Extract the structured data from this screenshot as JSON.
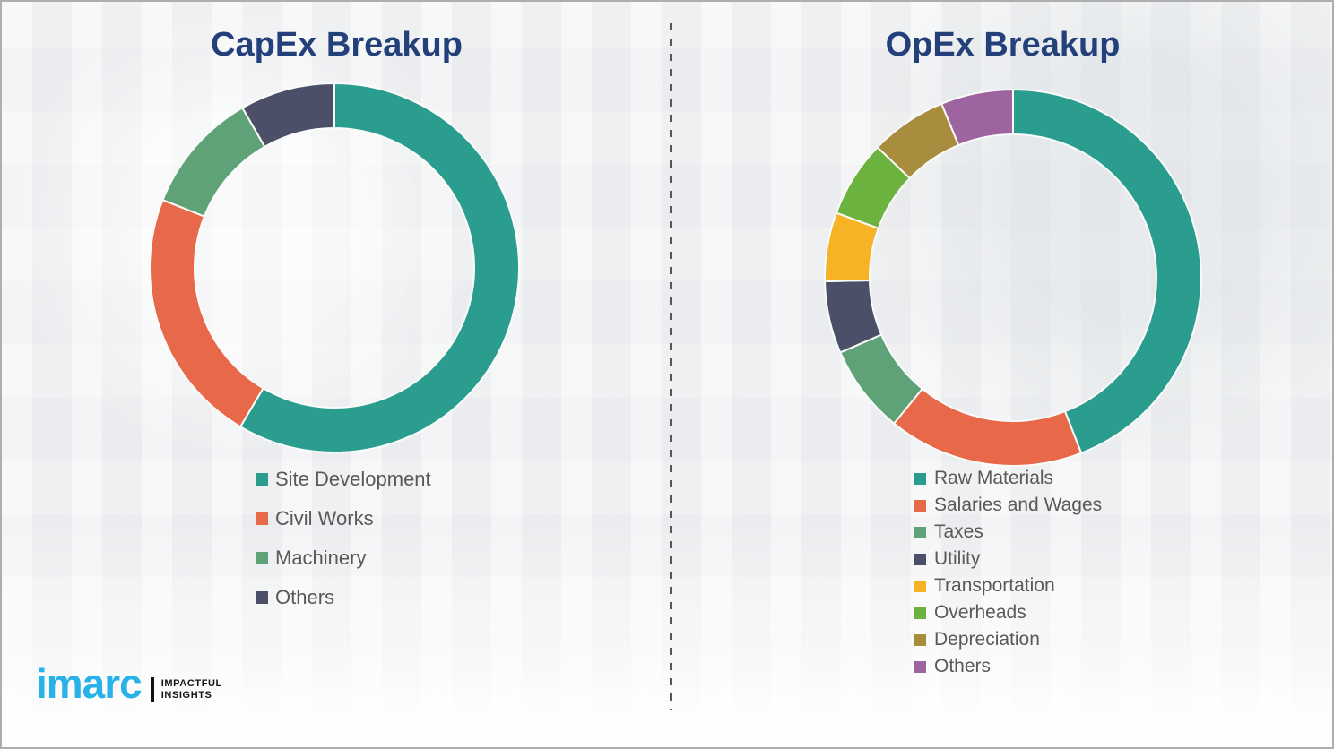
{
  "chart_data": [
    {
      "type": "pie",
      "subtype": "donut",
      "title": "CapEx Breakup",
      "categories": [
        "Site Development",
        "Civil Works",
        "Machinery",
        "Others"
      ],
      "values": [
        58.5,
        22.5,
        10.7,
        8.3
      ],
      "values_note": "percent shares estimated from arc angles; no numeric labels shown in image",
      "colors": [
        "#2a9d8f",
        "#e8684a",
        "#5fa277",
        "#4b4f68"
      ],
      "start_angle_deg_from_top": 0,
      "direction": "clockwise",
      "legend_position": "below-chart-left"
    },
    {
      "type": "pie",
      "subtype": "donut",
      "title": "OpEx Breakup",
      "categories": [
        "Raw Materials",
        "Salaries and Wages",
        "Taxes",
        "Utility",
        "Transportation",
        "Overheads",
        "Depreciation",
        "Others"
      ],
      "values": [
        44.1,
        16.8,
        7.6,
        6.2,
        5.9,
        6.6,
        6.6,
        6.2
      ],
      "values_note": "percent shares estimated from arc angles; no numeric labels shown in image",
      "colors": [
        "#2a9d8f",
        "#e8684a",
        "#5fa277",
        "#4b4f68",
        "#f5b325",
        "#6cb23e",
        "#a98d3e",
        "#9e64a0"
      ],
      "start_angle_deg_from_top": 0,
      "direction": "clockwise",
      "legend_position": "below-chart-left"
    }
  ],
  "logo": {
    "name": "imarc",
    "tagline_line1": "IMPACTFUL",
    "tagline_line2": "INSIGHTS"
  },
  "style": {
    "title_color": "#24407a",
    "legend_text_color": "#595959",
    "background_color": "#f0f1f2",
    "divider_color": "#565656",
    "logo_blue": "#29b2e8"
  }
}
